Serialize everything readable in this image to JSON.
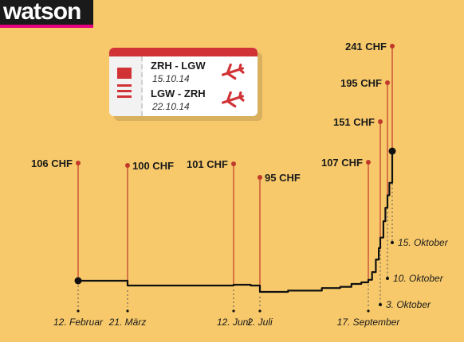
{
  "brand": {
    "logo_text": "watson",
    "accent_color": "#e6007e"
  },
  "ticket": {
    "outbound": {
      "route": "ZRH - LGW",
      "date": "15.10.14"
    },
    "return": {
      "route": "LGW - ZRH",
      "date": "22.10.14"
    },
    "icons": [
      "plane-icon",
      "plane-icon"
    ],
    "accent_color": "#d03236"
  },
  "chart_data": {
    "type": "line",
    "title": "",
    "xlabel": "",
    "ylabel": "",
    "x_type": "date",
    "ylim": [
      80,
      250
    ],
    "grid": false,
    "line_color": "#111111",
    "marker_color": "#c0392b",
    "series": [
      {
        "values": [
          {
            "x": "2014-02-12",
            "y": 106
          },
          {
            "x": "2014-03-15",
            "y": 106
          },
          {
            "x": "2014-03-21",
            "y": 100
          },
          {
            "x": "2014-06-12",
            "y": 101
          },
          {
            "x": "2014-06-25",
            "y": 100
          },
          {
            "x": "2014-07-02",
            "y": 95
          },
          {
            "x": "2014-07-22",
            "y": 96
          },
          {
            "x": "2014-08-15",
            "y": 98
          },
          {
            "x": "2014-08-28",
            "y": 99
          },
          {
            "x": "2014-09-05",
            "y": 102
          },
          {
            "x": "2014-09-12",
            "y": 104
          },
          {
            "x": "2014-09-17",
            "y": 107
          },
          {
            "x": "2014-09-22",
            "y": 115
          },
          {
            "x": "2014-09-27",
            "y": 128
          },
          {
            "x": "2014-10-01",
            "y": 140
          },
          {
            "x": "2014-10-03",
            "y": 151
          },
          {
            "x": "2014-10-06",
            "y": 168
          },
          {
            "x": "2014-10-08",
            "y": 182
          },
          {
            "x": "2014-10-10",
            "y": 195
          },
          {
            "x": "2014-10-12",
            "y": 208
          },
          {
            "x": "2014-10-15",
            "y": 241
          }
        ]
      }
    ],
    "annotations": [
      {
        "x": "2014-02-12",
        "y": 106,
        "price_label": "106 CHF",
        "date_label": "12. Februar",
        "label_side": "left"
      },
      {
        "x": "2014-03-21",
        "y": 100,
        "price_label": "100 CHF",
        "date_label": "21. März",
        "label_side": "right"
      },
      {
        "x": "2014-06-12",
        "y": 101,
        "price_label": "101 CHF",
        "date_label": "12. Juni",
        "label_side": "left"
      },
      {
        "x": "2014-07-02",
        "y": 95,
        "price_label": "95 CHF",
        "date_label": "2. Juli",
        "label_side": "right"
      },
      {
        "x": "2014-09-17",
        "y": 107,
        "price_label": "107 CHF",
        "date_label": "17. September",
        "label_side": "left"
      },
      {
        "x": "2014-10-03",
        "y": 151,
        "price_label": "151 CHF",
        "date_label": "3. Oktober",
        "label_side": "left"
      },
      {
        "x": "2014-10-10",
        "y": 195,
        "price_label": "195 CHF",
        "date_label": "10. Oktober",
        "label_side": "left"
      },
      {
        "x": "2014-10-15",
        "y": 241,
        "price_label": "241 CHF",
        "date_label": "15. Oktober",
        "label_side": "left"
      }
    ]
  }
}
